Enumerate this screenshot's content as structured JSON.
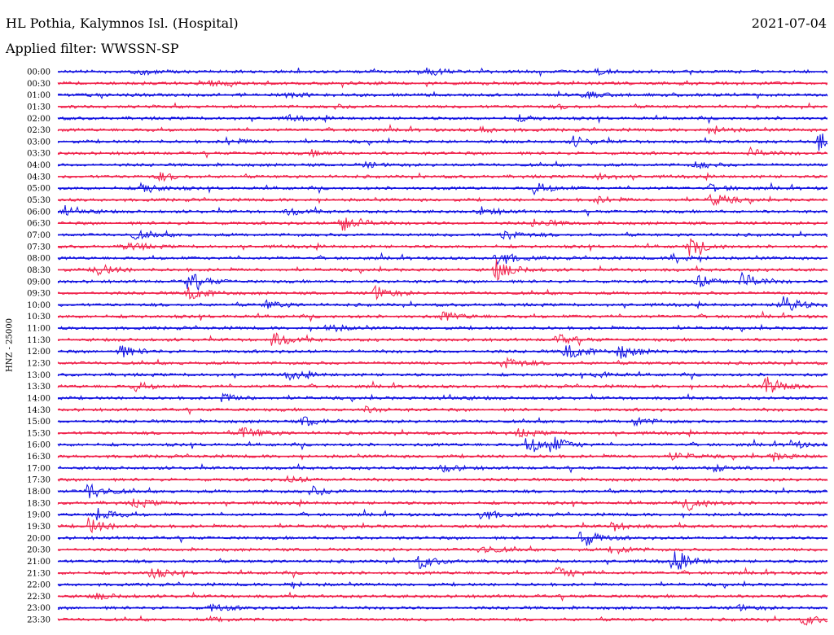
{
  "header": {
    "station": "HL Pothia, Kalymnos Isl. (Hospital)",
    "date": "2021-07-04",
    "filter": "Applied filter: WWSSN-SP"
  },
  "channel_label": "HNZ - 25000",
  "chart_data": {
    "type": "line",
    "title": "HL Pothia, Kalymnos Isl. (Hospital)",
    "subtitle": "Applied filter: WWSSN-SP",
    "ylabel": "HNZ - 25000",
    "colors": [
      "#1010e0",
      "#f0204a"
    ],
    "rows": [
      {
        "time": "00:00",
        "color": "#1010e0",
        "events": [
          {
            "t": 0.1,
            "a": 4
          },
          {
            "t": 0.48,
            "a": 6
          },
          {
            "t": 0.7,
            "a": 3
          }
        ]
      },
      {
        "time": "00:30",
        "color": "#f0204a",
        "events": [
          {
            "t": 0.2,
            "a": 3
          }
        ]
      },
      {
        "time": "01:00",
        "color": "#1010e0",
        "events": [
          {
            "t": 0.3,
            "a": 3
          },
          {
            "t": 0.68,
            "a": 5
          }
        ]
      },
      {
        "time": "01:30",
        "color": "#f0204a",
        "events": [
          {
            "t": 0.36,
            "a": 2
          },
          {
            "t": 0.65,
            "a": 2
          }
        ]
      },
      {
        "time": "02:00",
        "color": "#1010e0",
        "events": [
          {
            "t": 0.3,
            "a": 3
          },
          {
            "t": 0.6,
            "a": 3
          }
        ]
      },
      {
        "time": "02:30",
        "color": "#f0204a",
        "events": [
          {
            "t": 0.55,
            "a": 3
          },
          {
            "t": 0.85,
            "a": 5
          }
        ]
      },
      {
        "time": "03:00",
        "color": "#1010e0",
        "events": [
          {
            "t": 0.22,
            "a": 4
          },
          {
            "t": 0.67,
            "a": 6
          },
          {
            "t": 0.99,
            "a": 12
          }
        ]
      },
      {
        "time": "03:30",
        "color": "#f0204a",
        "events": [
          {
            "t": 0.33,
            "a": 3
          },
          {
            "t": 0.9,
            "a": 5
          }
        ]
      },
      {
        "time": "04:00",
        "color": "#1010e0",
        "events": [
          {
            "t": 0.4,
            "a": 3
          },
          {
            "t": 0.83,
            "a": 4
          }
        ]
      },
      {
        "time": "04:30",
        "color": "#f0204a",
        "events": [
          {
            "t": 0.13,
            "a": 5
          },
          {
            "t": 0.7,
            "a": 4
          }
        ]
      },
      {
        "time": "05:00",
        "color": "#1010e0",
        "events": [
          {
            "t": 0.11,
            "a": 7
          },
          {
            "t": 0.62,
            "a": 7
          },
          {
            "t": 0.85,
            "a": 4
          }
        ]
      },
      {
        "time": "05:30",
        "color": "#f0204a",
        "events": [
          {
            "t": 0.85,
            "a": 8
          },
          {
            "t": 0.7,
            "a": 4
          }
        ]
      },
      {
        "time": "06:00",
        "color": "#1010e0",
        "events": [
          {
            "t": 0.01,
            "a": 8
          },
          {
            "t": 0.3,
            "a": 4
          },
          {
            "t": 0.55,
            "a": 5
          }
        ]
      },
      {
        "time": "06:30",
        "color": "#f0204a",
        "events": [
          {
            "t": 0.37,
            "a": 12
          },
          {
            "t": 0.62,
            "a": 6
          }
        ]
      },
      {
        "time": "07:00",
        "color": "#1010e0",
        "events": [
          {
            "t": 0.1,
            "a": 5
          },
          {
            "t": 0.58,
            "a": 6
          }
        ]
      },
      {
        "time": "07:30",
        "color": "#f0204a",
        "events": [
          {
            "t": 0.09,
            "a": 6
          },
          {
            "t": 0.82,
            "a": 11
          }
        ]
      },
      {
        "time": "08:00",
        "color": "#1010e0",
        "events": [
          {
            "t": 0.57,
            "a": 10
          },
          {
            "t": 0.8,
            "a": 6
          }
        ]
      },
      {
        "time": "08:30",
        "color": "#f0204a",
        "events": [
          {
            "t": 0.05,
            "a": 8
          },
          {
            "t": 0.57,
            "a": 12
          }
        ]
      },
      {
        "time": "09:00",
        "color": "#1010e0",
        "events": [
          {
            "t": 0.17,
            "a": 11
          },
          {
            "t": 0.83,
            "a": 9
          },
          {
            "t": 0.89,
            "a": 10
          }
        ]
      },
      {
        "time": "09:30",
        "color": "#f0204a",
        "events": [
          {
            "t": 0.17,
            "a": 9
          },
          {
            "t": 0.41,
            "a": 9
          }
        ]
      },
      {
        "time": "10:00",
        "color": "#1010e0",
        "events": [
          {
            "t": 0.27,
            "a": 5
          },
          {
            "t": 0.94,
            "a": 12
          }
        ]
      },
      {
        "time": "10:30",
        "color": "#f0204a",
        "events": [
          {
            "t": 0.5,
            "a": 6
          }
        ]
      },
      {
        "time": "11:00",
        "color": "#1010e0",
        "events": [
          {
            "t": 0.35,
            "a": 5
          }
        ]
      },
      {
        "time": "11:30",
        "color": "#f0204a",
        "events": [
          {
            "t": 0.28,
            "a": 9
          },
          {
            "t": 0.65,
            "a": 6
          }
        ]
      },
      {
        "time": "12:00",
        "color": "#1010e0",
        "events": [
          {
            "t": 0.08,
            "a": 8
          },
          {
            "t": 0.66,
            "a": 12
          },
          {
            "t": 0.73,
            "a": 9
          }
        ]
      },
      {
        "time": "12:30",
        "color": "#f0204a",
        "events": [
          {
            "t": 0.58,
            "a": 8
          }
        ]
      },
      {
        "time": "13:00",
        "color": "#1010e0",
        "events": [
          {
            "t": 0.3,
            "a": 5
          },
          {
            "t": 0.7,
            "a": 4
          }
        ]
      },
      {
        "time": "13:30",
        "color": "#f0204a",
        "events": [
          {
            "t": 0.1,
            "a": 5
          },
          {
            "t": 0.92,
            "a": 12
          }
        ]
      },
      {
        "time": "14:00",
        "color": "#1010e0",
        "events": [
          {
            "t": 0.21,
            "a": 6
          },
          {
            "t": 0.5,
            "a": 4
          }
        ]
      },
      {
        "time": "14:30",
        "color": "#f0204a",
        "events": [
          {
            "t": 0.4,
            "a": 3
          }
        ]
      },
      {
        "time": "15:00",
        "color": "#1010e0",
        "events": [
          {
            "t": 0.32,
            "a": 6
          },
          {
            "t": 0.75,
            "a": 5
          }
        ]
      },
      {
        "time": "15:30",
        "color": "#f0204a",
        "events": [
          {
            "t": 0.24,
            "a": 9
          },
          {
            "t": 0.6,
            "a": 5
          }
        ]
      },
      {
        "time": "16:00",
        "color": "#1010e0",
        "events": [
          {
            "t": 0.61,
            "a": 12
          },
          {
            "t": 0.64,
            "a": 9
          },
          {
            "t": 0.95,
            "a": 5
          }
        ]
      },
      {
        "time": "16:30",
        "color": "#f0204a",
        "events": [
          {
            "t": 0.8,
            "a": 5
          },
          {
            "t": 0.93,
            "a": 5
          }
        ]
      },
      {
        "time": "17:00",
        "color": "#1010e0",
        "events": [
          {
            "t": 0.5,
            "a": 5
          },
          {
            "t": 0.85,
            "a": 5
          }
        ]
      },
      {
        "time": "17:30",
        "color": "#f0204a",
        "events": [
          {
            "t": 0.3,
            "a": 4
          }
        ]
      },
      {
        "time": "18:00",
        "color": "#1010e0",
        "events": [
          {
            "t": 0.04,
            "a": 11
          },
          {
            "t": 0.33,
            "a": 6
          }
        ]
      },
      {
        "time": "18:30",
        "color": "#f0204a",
        "events": [
          {
            "t": 0.82,
            "a": 9
          },
          {
            "t": 0.1,
            "a": 6
          }
        ]
      },
      {
        "time": "19:00",
        "color": "#1010e0",
        "events": [
          {
            "t": 0.05,
            "a": 9
          },
          {
            "t": 0.55,
            "a": 7
          }
        ]
      },
      {
        "time": "19:30",
        "color": "#f0204a",
        "events": [
          {
            "t": 0.04,
            "a": 10
          },
          {
            "t": 0.72,
            "a": 5
          }
        ]
      },
      {
        "time": "20:00",
        "color": "#1010e0",
        "events": [
          {
            "t": 0.68,
            "a": 12
          }
        ]
      },
      {
        "time": "20:30",
        "color": "#f0204a",
        "events": [
          {
            "t": 0.55,
            "a": 6
          },
          {
            "t": 0.72,
            "a": 6
          }
        ]
      },
      {
        "time": "21:00",
        "color": "#1010e0",
        "events": [
          {
            "t": 0.47,
            "a": 8
          },
          {
            "t": 0.8,
            "a": 12
          }
        ]
      },
      {
        "time": "21:30",
        "color": "#f0204a",
        "events": [
          {
            "t": 0.12,
            "a": 7
          },
          {
            "t": 0.65,
            "a": 8
          }
        ]
      },
      {
        "time": "22:00",
        "color": "#1010e0",
        "events": [
          {
            "t": 0.3,
            "a": 3
          }
        ]
      },
      {
        "time": "22:30",
        "color": "#f0204a",
        "events": [
          {
            "t": 0.05,
            "a": 4
          }
        ]
      },
      {
        "time": "23:00",
        "color": "#1010e0",
        "events": [
          {
            "t": 0.2,
            "a": 5
          },
          {
            "t": 0.88,
            "a": 4
          }
        ]
      },
      {
        "time": "23:30",
        "color": "#f0204a",
        "events": [
          {
            "t": 0.2,
            "a": 3
          },
          {
            "t": 0.97,
            "a": 6
          }
        ]
      }
    ]
  }
}
